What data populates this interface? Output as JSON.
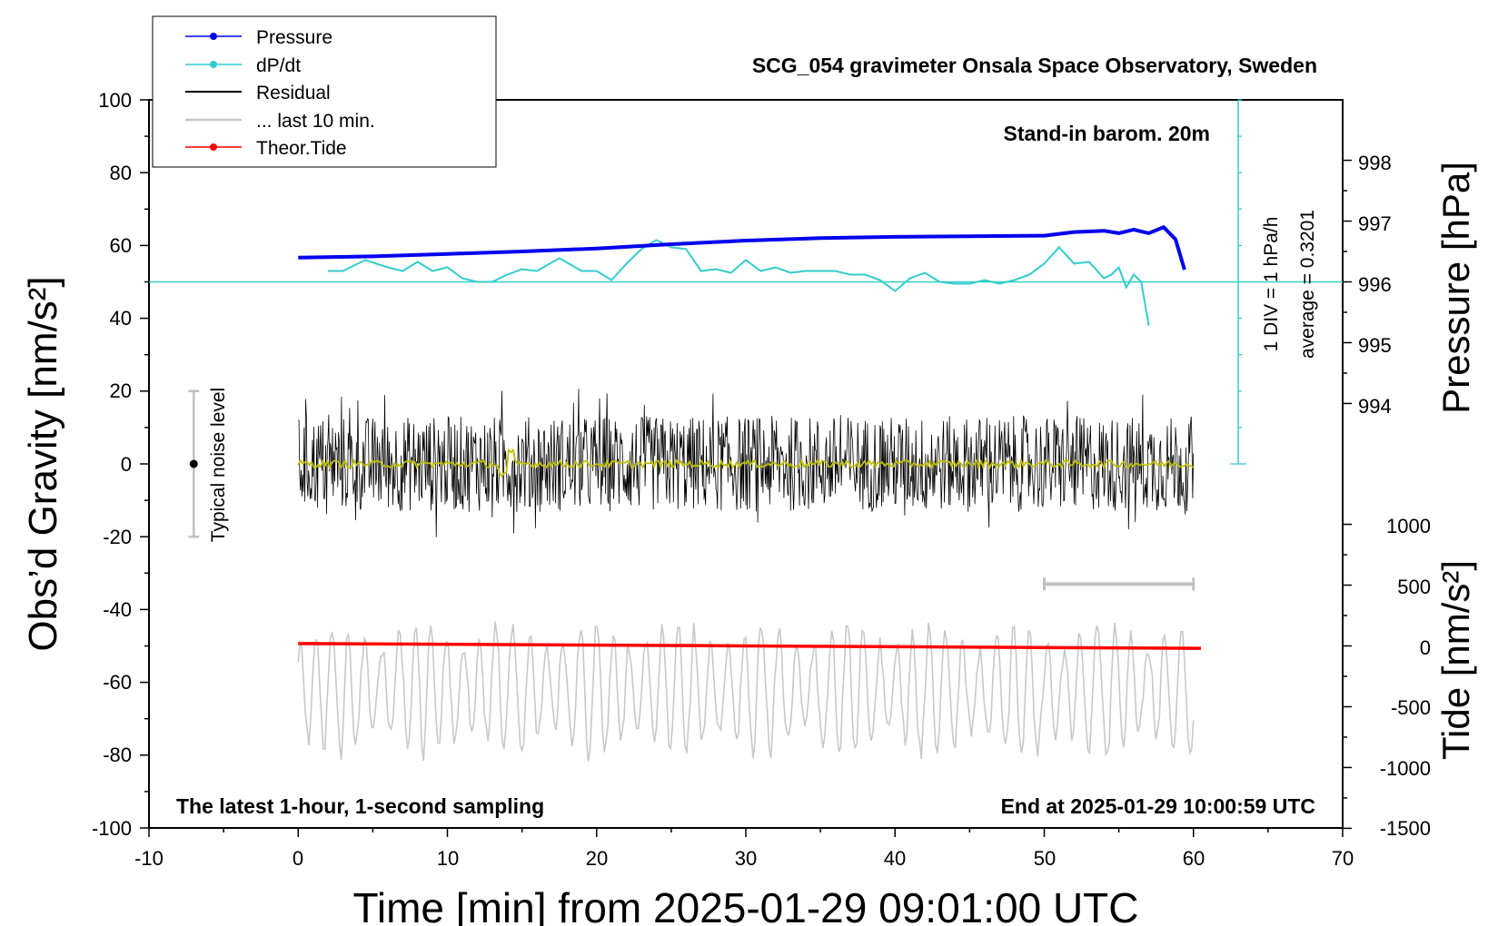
{
  "chart_data": {
    "type": "line",
    "title": "SCG_054 gravimeter Onsala Space Observatory, Sweden",
    "xlabel": "Time [min] from 2025-01-29 09:01:00 UTC",
    "ylabel_left": "Obs’d Gravity [nm/s²]",
    "ylabel_pressure": "Pressure [hPa]",
    "ylabel_tide": "Tide [nm/s²]",
    "xlim": [
      -10,
      70
    ],
    "ylim": [
      -100,
      100
    ],
    "x_ticks": [
      "-10",
      "0",
      "10",
      "20",
      "30",
      "40",
      "50",
      "60",
      "70"
    ],
    "y_ticks": [
      "100",
      "80",
      "60",
      "40",
      "20",
      "0",
      "-20",
      "-40",
      "-60",
      "-80",
      "-100"
    ],
    "pressure_axis": {
      "ticks": [
        "998",
        "997",
        "996",
        "995",
        "994"
      ],
      "range_hpa": [
        993,
        999
      ]
    },
    "tide_axis": {
      "ticks": [
        "1000",
        "500",
        "0",
        "-500",
        "-1000",
        "-1500"
      ],
      "range": [
        -1500,
        1000
      ]
    },
    "legend": [
      "Pressure",
      "dP/dt",
      "Residual",
      "... last 10 min.",
      "Theor.Tide"
    ],
    "annotations": {
      "barometer": "Stand-in barom. 20m",
      "div_label": "1 DIV = 1 hPa/h",
      "average_label": "average = 0.3201",
      "noise_label": "Typical noise level",
      "sampling_note": "The latest 1-hour, 1-second sampling",
      "end_note": "End at 2025-01-29 10:00:59 UTC"
    },
    "noise_level": {
      "x": -7,
      "center": 0,
      "range": [
        -20,
        20
      ]
    },
    "last10_bar": {
      "x_range": [
        50,
        60
      ],
      "y": -33
    },
    "series": [
      {
        "name": "Pressure",
        "color": "#0000ee",
        "axis": "pressure_hpa",
        "x": [
          0,
          5,
          10,
          15,
          20,
          25,
          30,
          35,
          40,
          45,
          50,
          52,
          54,
          55,
          56,
          57,
          58,
          58.8,
          59.4
        ],
        "values": [
          996.4,
          996.42,
          996.46,
          996.5,
          996.55,
          996.62,
          996.68,
          996.72,
          996.74,
          996.75,
          996.76,
          996.82,
          996.84,
          996.8,
          996.86,
          996.8,
          996.9,
          996.7,
          996.2
        ]
      },
      {
        "name": "dP/dt",
        "color": "#33cccc",
        "axis": "left_offset",
        "x": [
          2,
          3,
          4.5,
          6,
          7,
          8,
          9,
          10,
          11,
          12,
          13,
          14,
          15,
          16,
          17.5,
          19,
          20,
          21,
          22,
          23,
          24,
          25,
          26,
          27,
          28,
          29,
          30,
          31,
          32,
          33,
          34,
          35,
          36,
          37,
          38,
          39,
          40,
          41,
          42,
          43,
          44,
          45,
          46,
          47,
          48,
          49,
          50,
          51,
          52,
          53,
          54,
          54.5,
          55,
          55.5,
          56,
          56.5,
          57
        ],
        "values": [
          53,
          53,
          56,
          54,
          53,
          55.5,
          53,
          54,
          51,
          50,
          50,
          52,
          53.5,
          53,
          56.5,
          53,
          53,
          50.5,
          55,
          59,
          61.5,
          59.5,
          59,
          53,
          53.5,
          52.5,
          56,
          53,
          54,
          52.5,
          53,
          53,
          53,
          52,
          52,
          50.5,
          47.5,
          51,
          52.5,
          50,
          49.5,
          49.5,
          50.5,
          49.5,
          50.5,
          52,
          55,
          59.5,
          55,
          55.5,
          51,
          52,
          54,
          48.5,
          52,
          50,
          38
        ]
      },
      {
        "name": "dP/dt average",
        "color": "#33cccc",
        "value": 50
      },
      {
        "name": "Residual",
        "color": "#000000",
        "x_range": [
          0,
          60
        ],
        "amplitude_nm_s2": 22
      },
      {
        "name": "Residual smoothed",
        "color": "#c0c000",
        "x_range": [
          0,
          60
        ],
        "amplitude_nm_s2": 2
      },
      {
        "name": "... last 10 min.",
        "color": "#c8c8c8",
        "x_range": [
          0,
          60
        ],
        "center": -62,
        "amplitude": 18
      },
      {
        "name": "Theor.Tide",
        "color": "#ff0000",
        "axis": "tide",
        "x": [
          0,
          60.5
        ],
        "values": [
          20,
          -20
        ]
      }
    ]
  }
}
